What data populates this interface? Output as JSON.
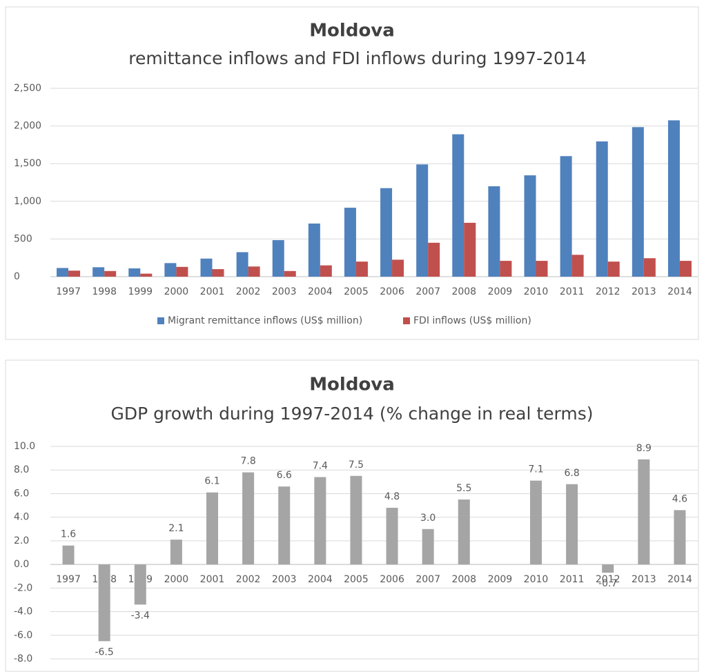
{
  "chart_data": [
    {
      "type": "bar",
      "title": "Moldova",
      "subtitle": "remittance inflows and FDI inflows during 1997-2014",
      "categories": [
        "1997",
        "1998",
        "1999",
        "2000",
        "2001",
        "2002",
        "2003",
        "2004",
        "2005",
        "2006",
        "2007",
        "2008",
        "2009",
        "2010",
        "2011",
        "2012",
        "2013",
        "2014"
      ],
      "series": [
        {
          "name": "Migrant remittance inflows (US$ million)",
          "color": "#4f81bd",
          "values": [
            115,
            125,
            110,
            180,
            240,
            325,
            485,
            705,
            915,
            1175,
            1490,
            1890,
            1200,
            1345,
            1600,
            1795,
            1985,
            2075
          ]
        },
        {
          "name": "FDI inflows (US$ million)",
          "color": "#c0504d",
          "values": [
            80,
            75,
            40,
            130,
            100,
            135,
            75,
            150,
            200,
            225,
            450,
            715,
            210,
            210,
            290,
            200,
            245,
            210
          ]
        }
      ],
      "ylim": [
        0,
        2500
      ],
      "yticks": [
        0,
        500,
        {
          "value": 1000,
          "label": "1,000"
        },
        {
          "value": 1500,
          "label": "1,500"
        },
        {
          "value": 2000,
          "label": "2,000"
        },
        {
          "value": 2500,
          "label": "2,500"
        }
      ],
      "grid": true,
      "legend": "bottom"
    },
    {
      "type": "bar",
      "title": "Moldova",
      "subtitle": "GDP growth during 1997-2014 (% change in real terms)",
      "categories": [
        "1997",
        "1998",
        "1999",
        "2000",
        "2001",
        "2002",
        "2003",
        "2004",
        "2005",
        "2006",
        "2007",
        "2008",
        "2009",
        "2010",
        "2011",
        "2012",
        "2013",
        "2014"
      ],
      "series": [
        {
          "color": "#a5a5a5",
          "values": [
            1.6,
            -6.5,
            -3.4,
            2.1,
            6.1,
            7.8,
            6.6,
            7.4,
            7.5,
            4.8,
            3.0,
            5.5,
            null,
            7.1,
            6.8,
            -0.7,
            8.9,
            4.6
          ],
          "value_labels": [
            "1.6",
            "-6.5",
            "-3.4",
            "2.1",
            "6.1",
            "7.8",
            "6.6",
            "7.4",
            "7.5",
            "4.8",
            "3.0",
            "5.5",
            null,
            "7.1",
            "6.8",
            "-0.7",
            "8.9",
            "4.6"
          ]
        }
      ],
      "ylim": [
        -8,
        10
      ],
      "yticks": [
        {
          "value": -8,
          "label": "-8.0"
        },
        {
          "value": -6,
          "label": "-6.0"
        },
        {
          "value": -4,
          "label": "-4.0"
        },
        {
          "value": -2,
          "label": "-2.0"
        },
        {
          "value": 0,
          "label": "0.0"
        },
        {
          "value": 2,
          "label": "2.0"
        },
        {
          "value": 4,
          "label": "4.0"
        },
        {
          "value": 6,
          "label": "6.0"
        },
        {
          "value": 8,
          "label": "8.0"
        },
        {
          "value": 10,
          "label": "10.0"
        }
      ],
      "grid": true
    }
  ]
}
